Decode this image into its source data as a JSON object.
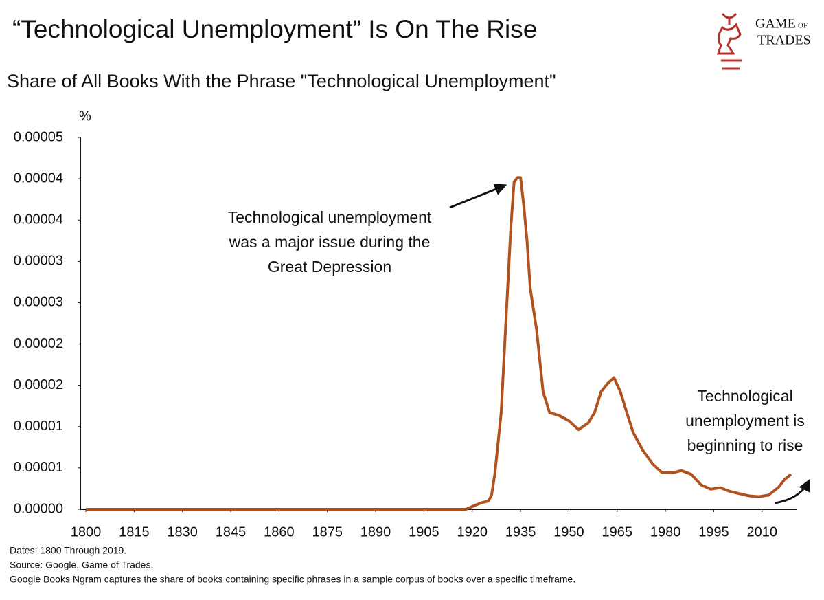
{
  "chart_data": {
    "type": "line",
    "title": "“Technological Unemployment” Is On The Rise",
    "subtitle": "Share of All Books With the Phrase \"Technological Unemployment\"",
    "y_label": "%",
    "logo": [
      "GAME",
      "OF",
      "TRADES"
    ],
    "annotations": [
      [
        "Technological unemployment",
        "was a major issue during the",
        "Great Depression"
      ],
      [
        "Technological",
        "unemployment is",
        "beginning to rise"
      ]
    ],
    "footnotes": [
      "Dates: 1800 Through 2019.",
      "Source: Google, Game of Trades.",
      "Google Books Ngram captures the share of books containing specific phrases in a sample corpus of books over a specific timeframe."
    ],
    "xlim": [
      1800,
      2019
    ],
    "xticks": [
      1800,
      1815,
      1830,
      1845,
      1860,
      1875,
      1890,
      1905,
      1920,
      1935,
      1950,
      1965,
      1980,
      1995,
      2010
    ],
    "ylim": [
      0,
      5e-05
    ],
    "yticks": [
      {
        "value": 0,
        "label": "0.00000"
      },
      {
        "value": 5.56e-06,
        "label": "0.00001"
      },
      {
        "value": 1.111e-05,
        "label": "0.00001"
      },
      {
        "value": 1.667e-05,
        "label": "0.00002"
      },
      {
        "value": 2.222e-05,
        "label": "0.00002"
      },
      {
        "value": 2.778e-05,
        "label": "0.00003"
      },
      {
        "value": 3.333e-05,
        "label": "0.00003"
      },
      {
        "value": 3.889e-05,
        "label": "0.00004"
      },
      {
        "value": 4.444e-05,
        "label": "0.00004"
      },
      5e-05
    ],
    "grid": false,
    "series": [
      {
        "name": "Technological Unemployment",
        "color": "#b0521f",
        "x": [
          1800,
          1850,
          1900,
          1918,
          1921,
          1923,
          1925,
          1926,
          1927,
          1929,
          1931,
          1932,
          1933,
          1934,
          1935,
          1936,
          1937,
          1938,
          1940,
          1942,
          1944,
          1947,
          1950,
          1953,
          1956,
          1958,
          1960,
          1962,
          1964,
          1966,
          1968,
          1970,
          1973,
          1976,
          1979,
          1982,
          1985,
          1988,
          1991,
          1994,
          1997,
          2000,
          2003,
          2006,
          2009,
          2012,
          2015,
          2017,
          2019
        ],
        "values": [
          0,
          0,
          0,
          0,
          5.5e-07,
          9e-07,
          1.1e-06,
          1.9e-06,
          4.7e-06,
          1.3e-05,
          2.97e-05,
          3.8e-05,
          4.4e-05,
          4.46e-05,
          4.46e-05,
          4.08e-05,
          3.61e-05,
          2.97e-05,
          2.41e-05,
          1.58e-05,
          1.3e-05,
          1.26e-05,
          1.19e-05,
          1.07e-05,
          1.16e-05,
          1.3e-05,
          1.58e-05,
          1.69e-05,
          1.77e-05,
          1.58e-05,
          1.3e-05,
          1.03e-05,
          7.9e-06,
          6.1e-06,
          4.9e-06,
          4.9e-06,
          5.2e-06,
          4.7e-06,
          3.3e-06,
          2.7e-06,
          2.9e-06,
          2.4e-06,
          2.1e-06,
          1.8e-06,
          1.7e-06,
          1.9e-06,
          2.9e-06,
          4e-06,
          4.7e-06
        ]
      }
    ]
  }
}
